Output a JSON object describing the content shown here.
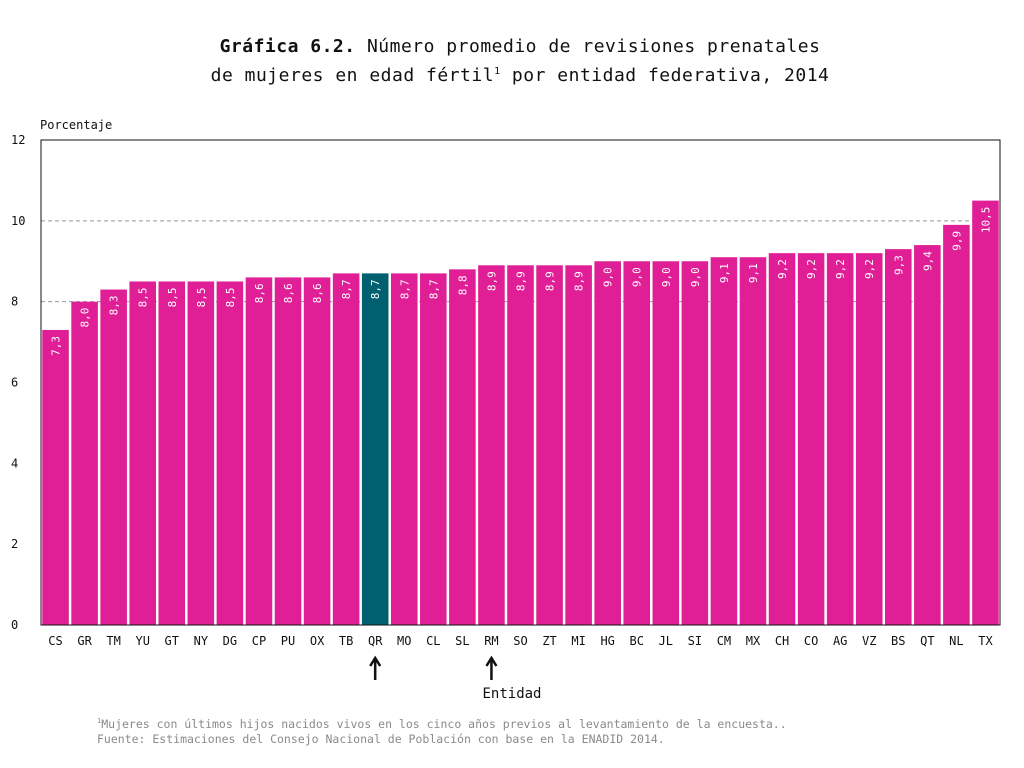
{
  "title": {
    "lead": "Gráfica 6.2.",
    "line1_rest": "Número promedio de revisiones prenatales",
    "line2_start": "de mujeres en edad fértil",
    "line2_sup": "1",
    "line2_end": " por entidad federativa, 2014"
  },
  "footnotes": {
    "note_marker": "1",
    "note_text": "Mujeres con últimos hijos nacidos vivos en los cinco años previos al levantamiento de la encuesta..",
    "source": "Fuente: Estimaciones del Consejo Nacional de Población con base en la ENADID  2014."
  },
  "colors": {
    "bar": "#e01e96",
    "highlight": "#006070",
    "gridline": "#999999"
  },
  "chart_data": {
    "type": "bar",
    "ylabel": "Porcentaje",
    "xlabel": "Entidad",
    "ylim": [
      0,
      12
    ],
    "yticks": [
      0,
      2,
      4,
      6,
      8,
      10,
      12
    ],
    "dashed_gridlines": [
      8,
      10
    ],
    "categories": [
      "CS",
      "GR",
      "TM",
      "YU",
      "GT",
      "NY",
      "DG",
      "CP",
      "PU",
      "OX",
      "TB",
      "QR",
      "MO",
      "CL",
      "SL",
      "RM",
      "SO",
      "ZT",
      "MI",
      "HG",
      "BC",
      "JL",
      "SI",
      "CM",
      "MX",
      "CH",
      "CO",
      "AG",
      "VZ",
      "BS",
      "QT",
      "NL",
      "TX"
    ],
    "values": [
      7.3,
      8.0,
      8.3,
      8.5,
      8.5,
      8.5,
      8.5,
      8.6,
      8.6,
      8.6,
      8.7,
      8.7,
      8.7,
      8.7,
      8.8,
      8.9,
      8.9,
      8.9,
      8.9,
      9.0,
      9.0,
      9.0,
      9.0,
      9.1,
      9.1,
      9.2,
      9.2,
      9.2,
      9.2,
      9.3,
      9.4,
      9.9,
      10.5
    ],
    "data_labels": [
      "7,3",
      "8,0",
      "8,3",
      "8,5",
      "8,5",
      "8,5",
      "8,5",
      "8,6",
      "8,6",
      "8,6",
      "8,7",
      "8,7",
      "8,7",
      "8,7",
      "8,8",
      "8,9",
      "8,9",
      "8,9",
      "8,9",
      "9,0",
      "9,0",
      "9,0",
      "9,0",
      "9,1",
      "9,1",
      "9,2",
      "9,2",
      "9,2",
      "9,2",
      "9,3",
      "9,4",
      "9,9",
      "10,5"
    ],
    "highlighted": "QR",
    "arrow_markers": [
      "QR",
      "RM"
    ]
  }
}
